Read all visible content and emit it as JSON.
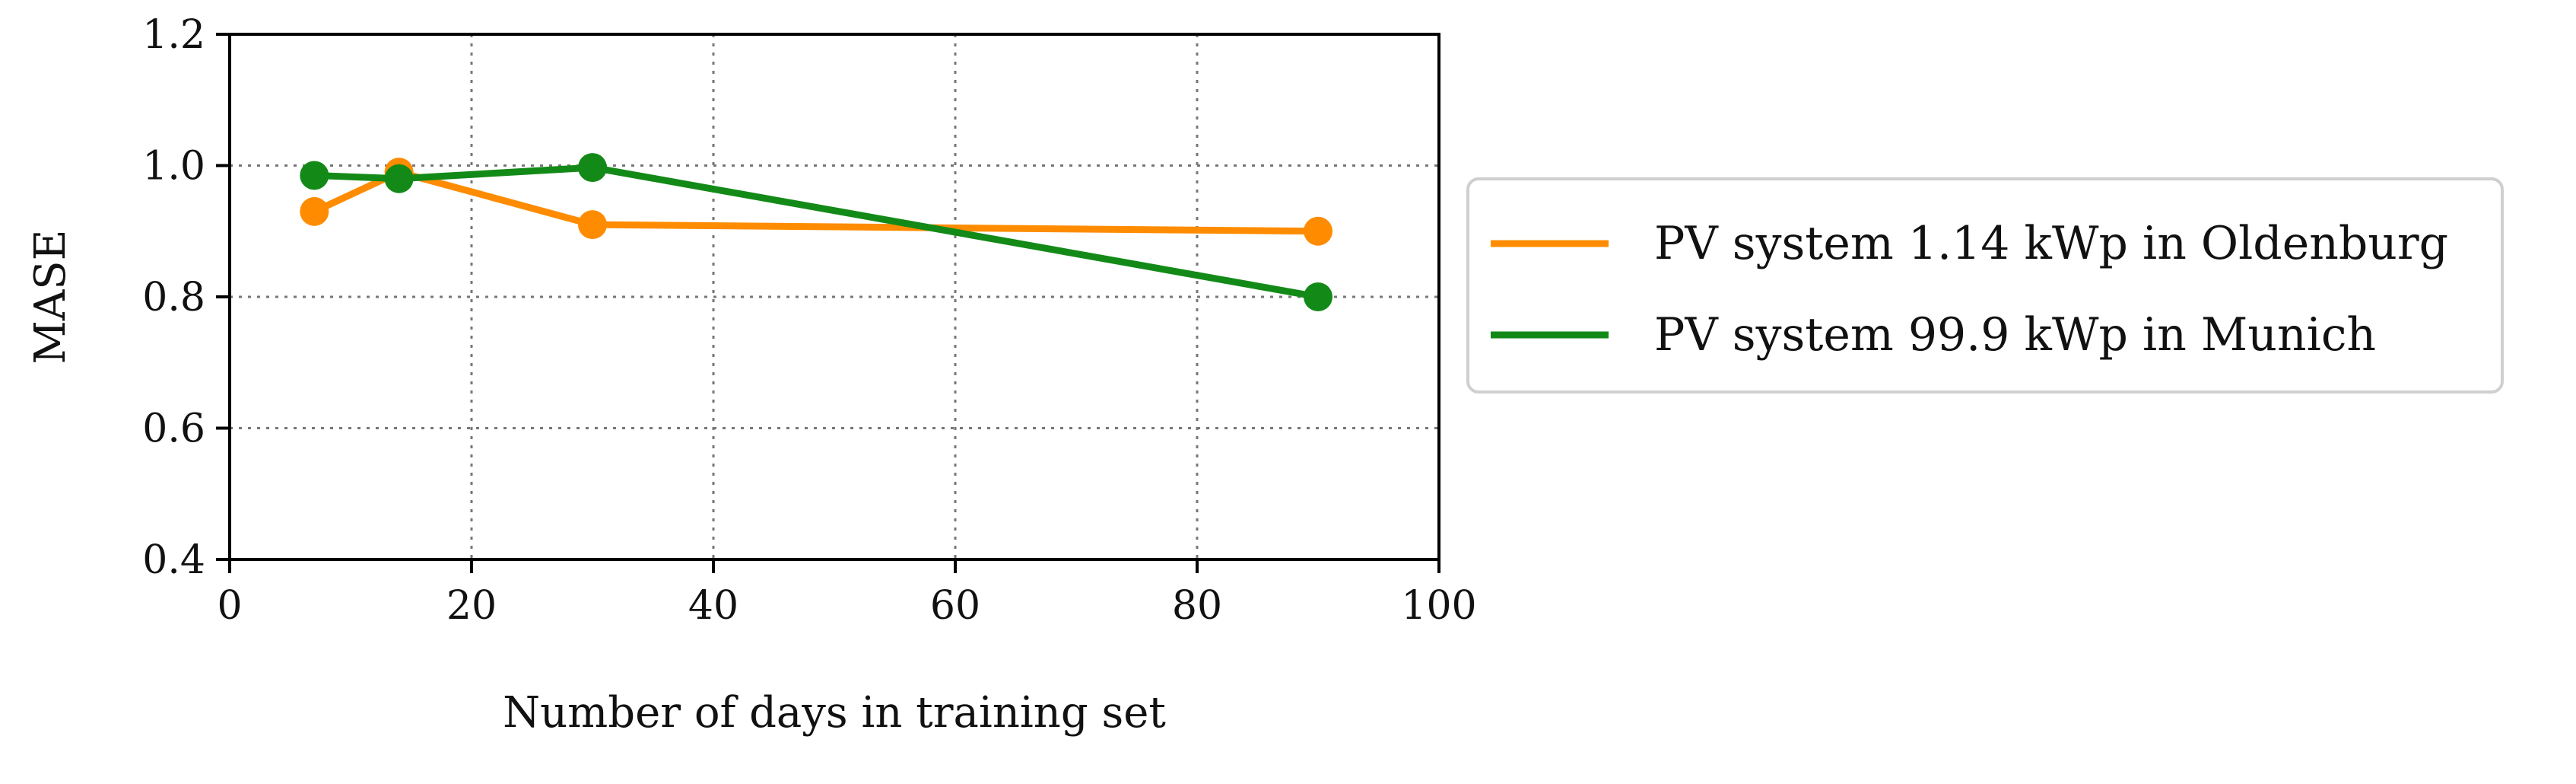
{
  "chart_data": {
    "type": "line",
    "xlabel": "Number of days in training set",
    "ylabel": "MASE",
    "xlim": [
      0,
      100
    ],
    "ylim": [
      0.4,
      1.2
    ],
    "x_ticks": [
      0,
      20,
      40,
      60,
      80,
      100
    ],
    "y_ticks": [
      0.4,
      0.6,
      0.8,
      1.0,
      1.2
    ],
    "x_tick_labels": [
      "0",
      "20",
      "40",
      "60",
      "80",
      "100"
    ],
    "y_tick_labels": [
      "0.4",
      "0.6",
      "0.8",
      "1.0",
      "1.2"
    ],
    "grid": true,
    "legend_position": "right-outside",
    "series": [
      {
        "name": "PV system 1.14 kWp in Oldenburg",
        "color": "#ff8c00",
        "x": [
          7,
          14,
          30,
          90
        ],
        "y": [
          0.93,
          0.99,
          0.91,
          0.9
        ]
      },
      {
        "name": "PV system 99.9 kWp in Munich",
        "color": "#138a17",
        "x": [
          7,
          14,
          30,
          90
        ],
        "y": [
          0.985,
          0.98,
          0.997,
          0.8
        ]
      }
    ]
  }
}
